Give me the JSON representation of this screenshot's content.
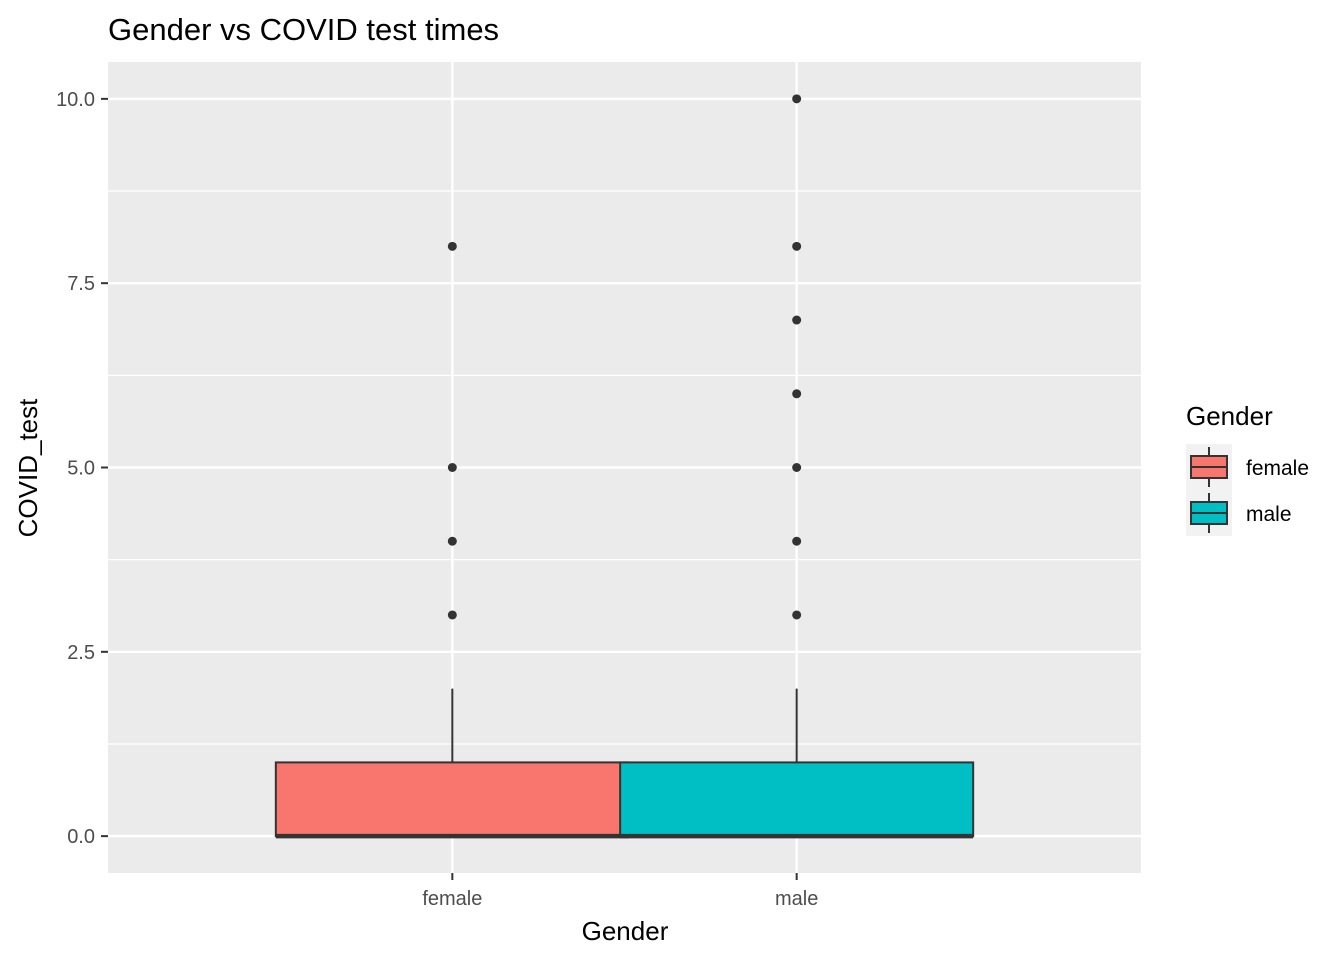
{
  "chart_data": {
    "type": "boxplot",
    "title": "Gender vs COVID test times",
    "xlabel": "Gender",
    "ylabel": "COVID_test",
    "categories": [
      "female",
      "male"
    ],
    "ylim": [
      -0.5,
      10.5
    ],
    "yticks": [
      0,
      2.5,
      5,
      7.5,
      10
    ],
    "ytick_labels": [
      "0.0",
      "2.5",
      "5.0",
      "7.5",
      "10.0"
    ],
    "grid": true,
    "panel_background": "#ebebeb",
    "legend": {
      "title": "Gender",
      "position": "right",
      "entries": [
        {
          "label": "female",
          "color": "#F8766D"
        },
        {
          "label": "male",
          "color": "#00BFC4"
        }
      ]
    },
    "boxes": [
      {
        "category": "female",
        "color": "#F8766D",
        "min": 0,
        "q1": 0,
        "median": 0,
        "q3": 1,
        "max": 2,
        "outliers": [
          3,
          4,
          5,
          8
        ]
      },
      {
        "category": "male",
        "color": "#00BFC4",
        "min": 0,
        "q1": 0,
        "median": 0,
        "q3": 1,
        "max": 2,
        "outliers": [
          3,
          4,
          5,
          6,
          7,
          8,
          10
        ]
      }
    ]
  }
}
